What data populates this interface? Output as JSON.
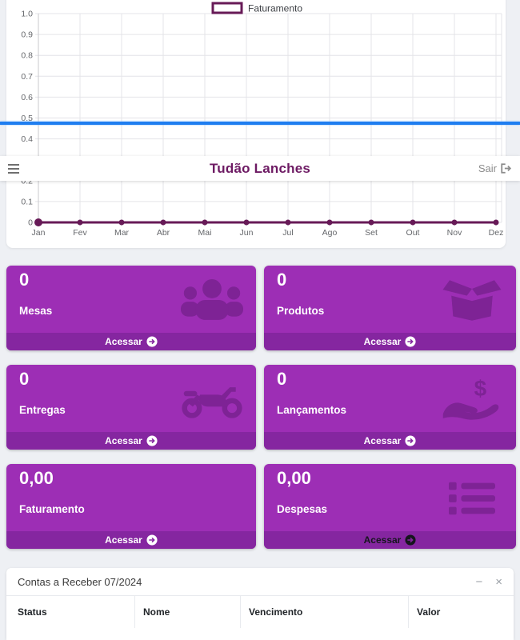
{
  "header": {
    "title": "Tudão Lanches",
    "logout_label": "Sair"
  },
  "chart_data": {
    "type": "line",
    "title": "",
    "categories": [
      "Jan",
      "Fev",
      "Mar",
      "Abr",
      "Mai",
      "Jun",
      "Jul",
      "Ago",
      "Set",
      "Out",
      "Nov",
      "Dez"
    ],
    "series": [
      {
        "name": "Faturamento",
        "values": [
          0,
          0,
          0,
          0,
          0,
          0,
          0,
          0,
          0,
          0,
          0,
          0
        ],
        "color": "#671a57"
      }
    ],
    "ylim": [
      0,
      1.0
    ],
    "ytick_step": 0.1,
    "grid": true,
    "legend_position": "top",
    "xlabel": "",
    "ylabel": ""
  },
  "cards": [
    {
      "value": "0",
      "label": "Mesas",
      "icon": "users-icon",
      "action": "Acessar"
    },
    {
      "value": "0",
      "label": "Produtos",
      "icon": "box-open-icon",
      "action": "Acessar"
    },
    {
      "value": "0",
      "label": "Entregas",
      "icon": "motorcycle-icon",
      "action": "Acessar"
    },
    {
      "value": "0",
      "label": "Lançamentos",
      "icon": "hand-holding-dollar-icon",
      "action": "Acessar"
    },
    {
      "value": "0,00",
      "label": "Faturamento",
      "icon": "none",
      "action": "Acessar"
    },
    {
      "value": "0,00",
      "label": "Despesas",
      "icon": "list-icon",
      "action": "Acessar"
    }
  ],
  "panel": {
    "title": "Contas a Receber 07/2024",
    "minimize_icon": "−",
    "close_icon": "×",
    "columns": [
      "Status",
      "Nome",
      "Vencimento",
      "Valor"
    ]
  },
  "colors": {
    "card_purple": "#9d2eb5",
    "card_footer_purple": "#8526a0",
    "card_icon_purple": "#7e2395",
    "brand_title": "#6d1a63",
    "chart_line": "#671a57",
    "blue_line": "#1f7ef0",
    "page_background": "#eef0f4"
  }
}
